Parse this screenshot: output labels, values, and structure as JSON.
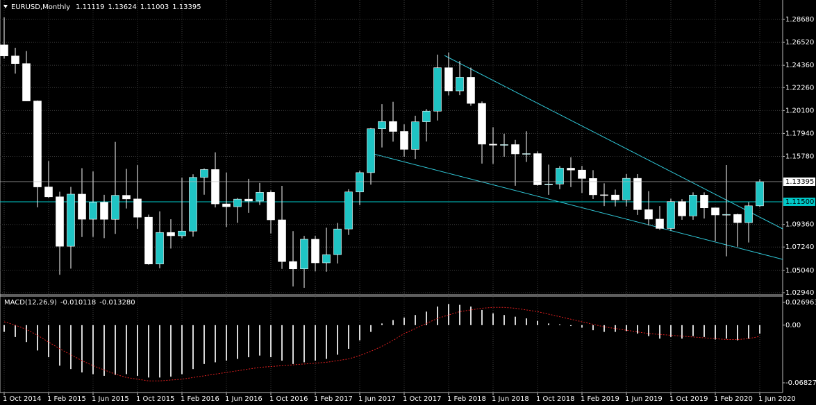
{
  "chart_data": [
    {
      "type": "candlestick",
      "title": "EURUSD,Monthly",
      "categories": [
        "1 Oct 2014",
        null,
        null,
        null,
        "1 Feb 2015",
        null,
        null,
        null,
        "1 Jun 2015",
        null,
        null,
        null,
        "1 Oct 2015",
        null,
        null,
        null,
        "1 Feb 2016",
        null,
        null,
        null,
        "1 Jun 2016",
        null,
        null,
        null,
        "1 Oct 2016",
        null,
        null,
        null,
        "1 Feb 2017",
        null,
        null,
        null,
        "1 Jun 2017",
        null,
        null,
        null,
        "1 Oct 2017",
        null,
        null,
        null,
        "1 Feb 2018",
        null,
        null,
        null,
        "1 Jun 2018",
        null,
        null,
        null,
        "1 Oct 2018",
        null,
        null,
        null,
        "1 Feb 2019",
        null,
        null,
        null,
        "1 Jun 2019",
        null,
        null,
        null,
        "1 Oct 2019",
        null,
        null,
        null,
        "1 Feb 2020",
        null,
        null,
        null,
        "1 Jun 2020"
      ],
      "open": [
        1.2628,
        1.2524,
        1.2452,
        1.21,
        1.129,
        1.1197,
        1.0731,
        1.1222,
        1.0986,
        1.1146,
        1.0985,
        1.1211,
        1.1177,
        1.1005,
        1.0564,
        1.0861,
        1.083,
        1.0874,
        1.138,
        1.1454,
        1.113,
        1.1104,
        1.1175,
        1.1157,
        1.1239,
        1.098,
        1.0587,
        1.0518,
        1.0797,
        1.0575,
        1.0652,
        1.0894,
        1.1243,
        1.1425,
        1.1838,
        1.1906,
        1.1813,
        1.1644,
        1.1904,
        1.2004,
        1.2413,
        1.2195,
        1.2323,
        1.2077,
        1.1693,
        1.1684,
        1.1689,
        1.1601,
        1.1604,
        1.131,
        1.1317,
        1.1467,
        1.1449,
        1.137,
        1.1216,
        1.1214,
        1.1168,
        1.1371,
        1.1076,
        1.0987,
        1.0899,
        1.1152,
        1.1017,
        1.1213,
        1.1093,
        1.1026,
        1.1031,
        1.0954,
        1.11119
      ],
      "high": [
        1.2887,
        1.2601,
        1.257,
        1.2105,
        1.1534,
        1.1245,
        1.129,
        1.1467,
        1.1436,
        1.1216,
        1.1714,
        1.146,
        1.1495,
        1.1029,
        1.106,
        1.0986,
        1.1376,
        1.141,
        1.1464,
        1.1616,
        1.1427,
        1.1185,
        1.1366,
        1.1327,
        1.1258,
        1.13,
        1.0874,
        1.0829,
        1.0829,
        1.0906,
        1.0951,
        1.1268,
        1.1445,
        1.1845,
        1.207,
        1.2092,
        1.188,
        1.1961,
        1.2023,
        1.2537,
        1.2556,
        1.2476,
        1.2414,
        1.2096,
        1.1852,
        1.1791,
        1.1733,
        1.1815,
        1.1625,
        1.15,
        1.1486,
        1.157,
        1.1489,
        1.1448,
        1.1324,
        1.1265,
        1.1412,
        1.1411,
        1.125,
        1.111,
        1.1179,
        1.1175,
        1.1239,
        1.1239,
        1.1096,
        1.1496,
        1.1039,
        1.1147,
        1.13624
      ],
      "low": [
        1.25,
        1.2358,
        1.2098,
        1.1098,
        1.1187,
        1.0462,
        1.052,
        1.0818,
        1.0819,
        1.0808,
        1.0848,
        1.1087,
        1.0896,
        1.0557,
        1.0524,
        1.071,
        1.0806,
        1.0822,
        1.1217,
        1.1097,
        1.0912,
        1.0952,
        1.1046,
        1.112,
        1.0852,
        1.0518,
        1.0352,
        1.034,
        1.0494,
        1.0492,
        1.0569,
        1.0838,
        1.1118,
        1.1312,
        1.1662,
        1.1717,
        1.1575,
        1.1554,
        1.1718,
        1.1916,
        1.2153,
        1.2155,
        1.2055,
        1.151,
        1.1508,
        1.1575,
        1.1301,
        1.1526,
        1.1302,
        1.1216,
        1.1269,
        1.1289,
        1.1234,
        1.1176,
        1.111,
        1.1107,
        1.1107,
        1.1027,
        1.0927,
        1.0885,
        1.0879,
        1.0981,
        1.0981,
        1.0992,
        1.0777,
        1.0636,
        1.0727,
        1.0767,
        1.11003
      ],
      "close": [
        1.2524,
        1.2452,
        1.21,
        1.129,
        1.1197,
        1.0731,
        1.1222,
        1.0986,
        1.1146,
        1.0985,
        1.1211,
        1.1177,
        1.1005,
        1.0564,
        1.0861,
        1.083,
        1.0874,
        1.138,
        1.1454,
        1.113,
        1.1104,
        1.1175,
        1.1157,
        1.1239,
        1.098,
        1.0587,
        1.0518,
        1.0797,
        1.0575,
        1.0652,
        1.0894,
        1.1243,
        1.1425,
        1.1838,
        1.1906,
        1.1813,
        1.1644,
        1.1904,
        1.2004,
        1.2413,
        1.2195,
        1.2323,
        1.2077,
        1.1693,
        1.1684,
        1.1689,
        1.1601,
        1.1604,
        1.131,
        1.1317,
        1.1467,
        1.1449,
        1.137,
        1.1216,
        1.1214,
        1.1168,
        1.1371,
        1.1076,
        1.0987,
        1.0899,
        1.1152,
        1.1017,
        1.1213,
        1.1093,
        1.1026,
        1.1031,
        1.0954,
        1.1112,
        1.13395
      ],
      "ylim": [
        1.0281,
        1.3025
      ],
      "yticks": [
        {
          "value": 1.2868,
          "label": "1.28680"
        },
        {
          "value": 1.2652,
          "label": "1.26520"
        },
        {
          "value": 1.2436,
          "label": "1.24360"
        },
        {
          "value": 1.2226,
          "label": "1.22260"
        },
        {
          "value": 1.201,
          "label": "1.20100"
        },
        {
          "value": 1.1794,
          "label": "1.17940"
        },
        {
          "value": 1.1578,
          "label": "1.15780"
        },
        {
          "value": 1.0936,
          "label": "1.09360"
        },
        {
          "value": 1.0724,
          "label": "1.07240"
        },
        {
          "value": 1.0504,
          "label": "1.05040"
        },
        {
          "value": 1.0294,
          "label": "1.02940"
        }
      ],
      "hline": {
        "value": 1.115,
        "label": "1.11500",
        "color": "#00c8c8"
      },
      "colors": {
        "up": "#1fc4c4",
        "down": "#ffffff",
        "wick": "#ffffff"
      },
      "grid": true
    },
    {
      "type": "macd",
      "title": "MACD(12,26,9)",
      "values": [
        -0.008,
        -0.014,
        -0.02,
        -0.03,
        -0.038,
        -0.048,
        -0.052,
        -0.056,
        -0.058,
        -0.06,
        -0.059,
        -0.058,
        -0.06,
        -0.062,
        -0.062,
        -0.061,
        -0.058,
        -0.052,
        -0.046,
        -0.044,
        -0.042,
        -0.04,
        -0.038,
        -0.036,
        -0.038,
        -0.042,
        -0.046,
        -0.044,
        -0.042,
        -0.04,
        -0.035,
        -0.028,
        -0.018,
        -0.008,
        0.002,
        0.006,
        0.009,
        0.012,
        0.016,
        0.022,
        0.025,
        0.024,
        0.022,
        0.018,
        0.014,
        0.012,
        0.01,
        0.008,
        0.005,
        0.002,
        0.001,
        -0.001,
        -0.003,
        -0.006,
        -0.008,
        -0.008,
        -0.007,
        -0.01,
        -0.013,
        -0.016,
        -0.014,
        -0.016,
        -0.013,
        -0.014,
        -0.017,
        -0.016,
        -0.018,
        -0.016,
        -0.010118
      ],
      "signal": [
        0.004,
        0.0,
        -0.005,
        -0.012,
        -0.02,
        -0.028,
        -0.035,
        -0.042,
        -0.048,
        -0.053,
        -0.058,
        -0.062,
        -0.064,
        -0.066,
        -0.066,
        -0.065,
        -0.064,
        -0.062,
        -0.06,
        -0.058,
        -0.056,
        -0.054,
        -0.052,
        -0.05,
        -0.049,
        -0.048,
        -0.047,
        -0.046,
        -0.045,
        -0.044,
        -0.042,
        -0.04,
        -0.036,
        -0.031,
        -0.025,
        -0.018,
        -0.01,
        -0.004,
        0.002,
        0.008,
        0.012,
        0.016,
        0.018,
        0.02,
        0.021,
        0.021,
        0.02,
        0.018,
        0.016,
        0.013,
        0.01,
        0.007,
        0.004,
        0.001,
        -0.002,
        -0.004,
        -0.006,
        -0.008,
        -0.01,
        -0.011,
        -0.012,
        -0.013,
        -0.014,
        -0.015,
        -0.016,
        -0.017,
        -0.017,
        -0.016,
        -0.01328
      ],
      "signal_label": "-0.013280",
      "ylim": [
        -0.07895,
        0.03353
      ],
      "yticks": [
        0.026963,
        {
          "value": 0,
          "label": "0.00"
        },
        -0.068278
      ],
      "colors": {
        "bar": "#d8d8d8",
        "signal": "#e02020"
      }
    }
  ]
}
